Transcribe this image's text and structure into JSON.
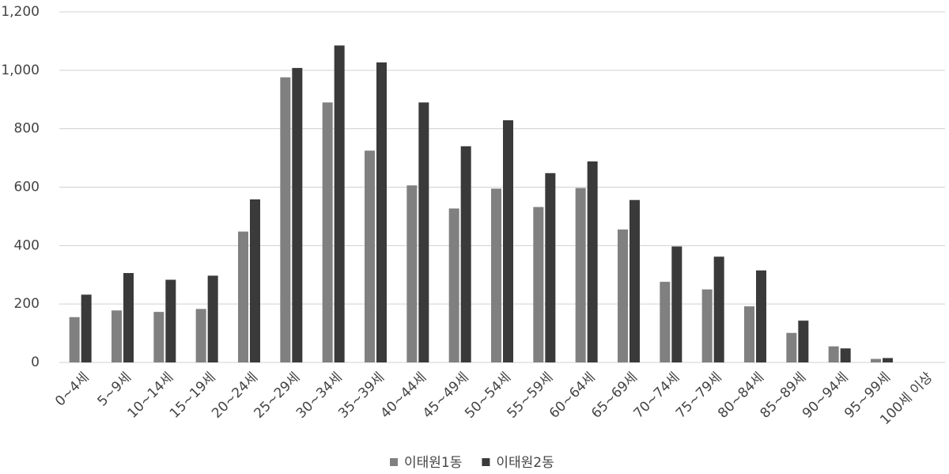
{
  "chart_data": {
    "type": "bar",
    "categories": [
      "0~4세",
      "5~9세",
      "10~14세",
      "15~19세",
      "20~24세",
      "25~29세",
      "30~34세",
      "35~39세",
      "40~44세",
      "45~49세",
      "50~54세",
      "55~59세",
      "60~64세",
      "65~69세",
      "70~74세",
      "75~79세",
      "80~84세",
      "85~89세",
      "90~94세",
      "95~99세",
      "100세 이상"
    ],
    "series": [
      {
        "name": "이태원1동",
        "color": "#808080",
        "values": [
          155,
          178,
          173,
          183,
          448,
          976,
          890,
          725,
          606,
          527,
          595,
          532,
          597,
          455,
          276,
          250,
          192,
          101,
          55,
          12,
          0
        ]
      },
      {
        "name": "이태원2동",
        "color": "#3a3a3a",
        "values": [
          232,
          306,
          283,
          297,
          558,
          1008,
          1085,
          1027,
          890,
          740,
          829,
          648,
          688,
          556,
          397,
          362,
          315,
          143,
          48,
          15,
          0
        ]
      }
    ],
    "ylim": [
      0,
      1200
    ],
    "yticks": [
      0,
      200,
      400,
      600,
      800,
      {
        "value": 1000,
        "label": "1,000"
      },
      {
        "value": 1200,
        "label": "1,200"
      }
    ],
    "grid": true,
    "legend": "bottom"
  }
}
